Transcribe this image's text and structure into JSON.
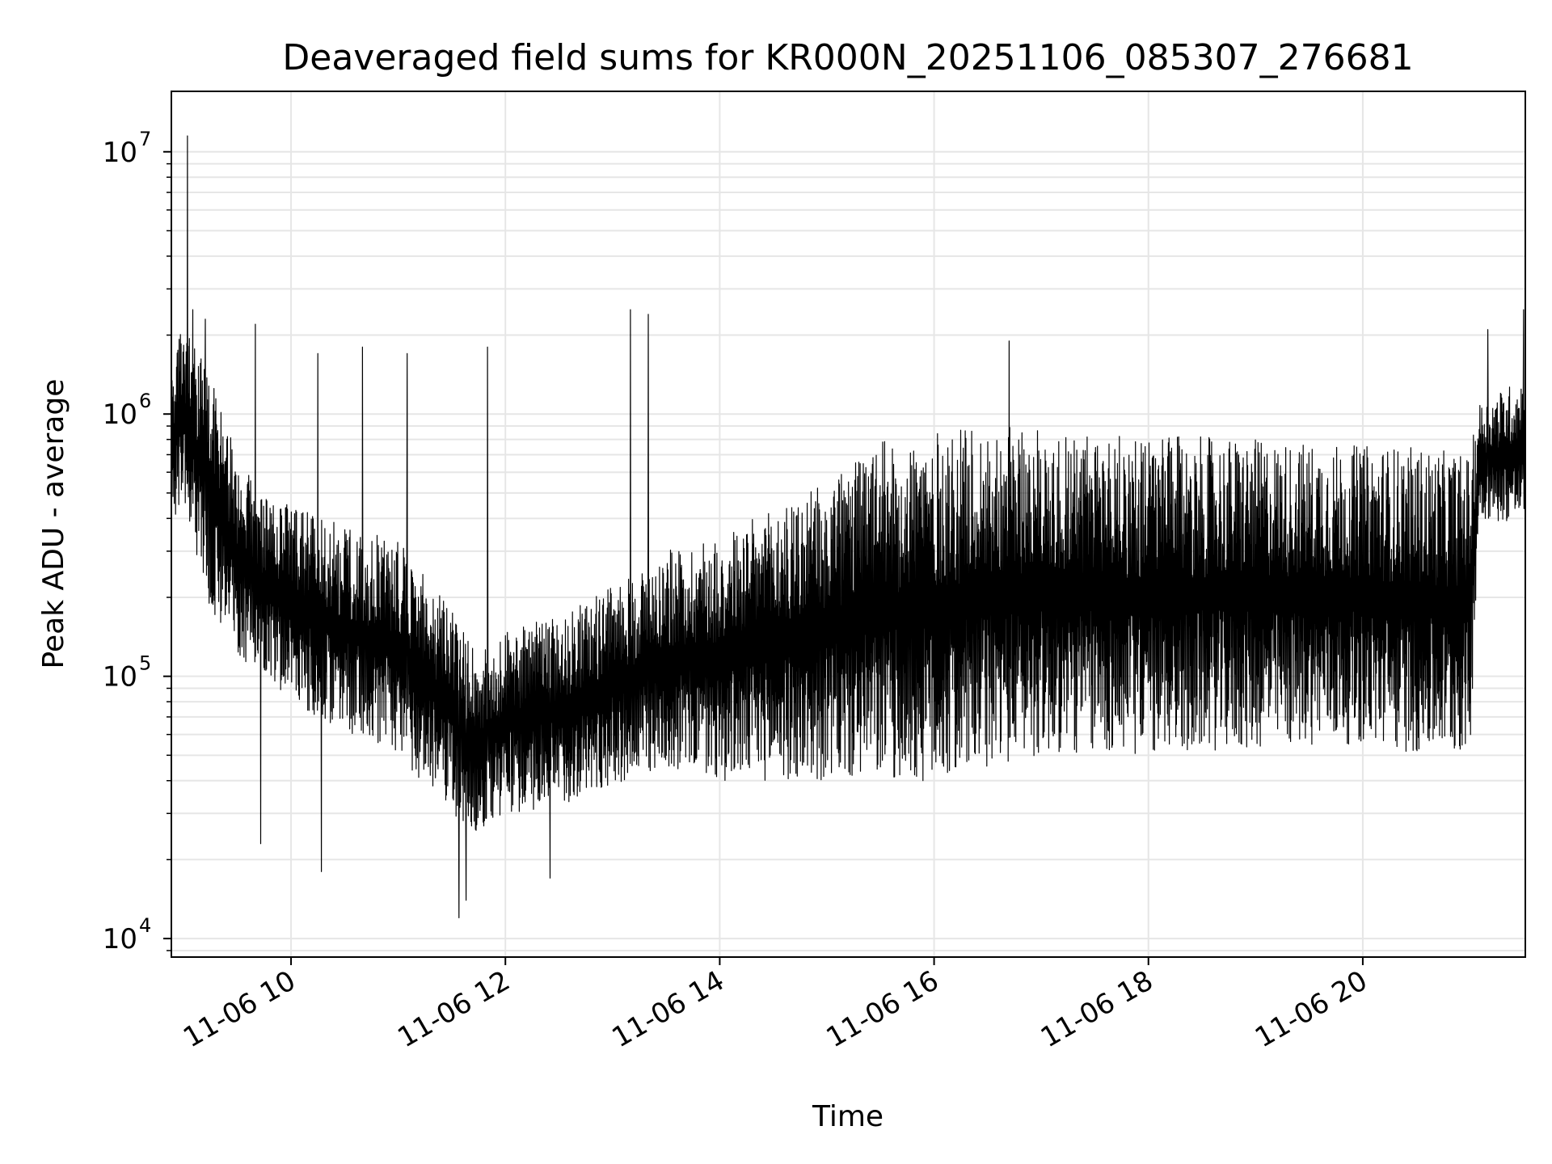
{
  "chart_data": {
    "type": "line",
    "title": "Deaveraged field sums for KR000N_20251106_085307_276681",
    "xlabel": "Time",
    "ylabel": "Peak ADU - average",
    "y_scale": "log",
    "ylim": [
      8500,
      17000000
    ],
    "xlim": [
      "11-06 08:53",
      "11-06 21:31"
    ],
    "grid": true,
    "line_color": "#000000",
    "grid_color": "#e6e6e6",
    "x_ticks": [
      {
        "value": "11-06 10:00",
        "label": "11-06 10"
      },
      {
        "value": "11-06 12:00",
        "label": "11-06 12"
      },
      {
        "value": "11-06 14:00",
        "label": "11-06 14"
      },
      {
        "value": "11-06 16:00",
        "label": "11-06 16"
      },
      {
        "value": "11-06 18:00",
        "label": "11-06 18"
      },
      {
        "value": "11-06 20:00",
        "label": "11-06 20"
      }
    ],
    "y_ticks": [
      {
        "value": 10000,
        "base": "10",
        "exp": "4"
      },
      {
        "value": 100000,
        "base": "10",
        "exp": "5"
      },
      {
        "value": 1000000,
        "base": "10",
        "exp": "6"
      },
      {
        "value": 10000000,
        "base": "10",
        "exp": "7"
      }
    ],
    "series": [
      {
        "envelope": [
          {
            "t": "11-06 08:53",
            "low": 380000,
            "high": 1700000
          },
          {
            "t": "11-06 09:00",
            "low": 450000,
            "high": 2200000
          },
          {
            "t": "11-06 09:15",
            "low": 180000,
            "high": 1400000
          },
          {
            "t": "11-06 09:30",
            "low": 120000,
            "high": 700000
          },
          {
            "t": "11-06 09:45",
            "low": 100000,
            "high": 500000
          },
          {
            "t": "11-06 10:00",
            "low": 80000,
            "high": 450000
          },
          {
            "t": "11-06 10:30",
            "low": 60000,
            "high": 380000
          },
          {
            "t": "11-06 11:00",
            "low": 50000,
            "high": 330000
          },
          {
            "t": "11-06 11:30",
            "low": 30000,
            "high": 180000
          },
          {
            "t": "11-06 11:45",
            "low": 25000,
            "high": 120000
          },
          {
            "t": "11-06 12:00",
            "low": 30000,
            "high": 150000
          },
          {
            "t": "11-06 12:30",
            "low": 32000,
            "high": 170000
          },
          {
            "t": "11-06 13:00",
            "low": 38000,
            "high": 220000
          },
          {
            "t": "11-06 13:30",
            "low": 45000,
            "high": 300000
          },
          {
            "t": "11-06 14:00",
            "low": 40000,
            "high": 350000
          },
          {
            "t": "11-06 14:30",
            "low": 40000,
            "high": 430000
          },
          {
            "t": "11-06 15:00",
            "low": 40000,
            "high": 550000
          },
          {
            "t": "11-06 15:30",
            "low": 40000,
            "high": 780000
          },
          {
            "t": "11-06 16:00",
            "low": 38000,
            "high": 850000
          },
          {
            "t": "11-06 16:30",
            "low": 45000,
            "high": 900000
          },
          {
            "t": "11-06 17:00",
            "low": 50000,
            "high": 880000
          },
          {
            "t": "11-06 17:30",
            "low": 50000,
            "high": 850000
          },
          {
            "t": "11-06 18:00",
            "low": 50000,
            "high": 820000
          },
          {
            "t": "11-06 18:30",
            "low": 52000,
            "high": 820000
          },
          {
            "t": "11-06 19:00",
            "low": 52000,
            "high": 800000
          },
          {
            "t": "11-06 19:30",
            "low": 55000,
            "high": 780000
          },
          {
            "t": "11-06 20:00",
            "low": 55000,
            "high": 760000
          },
          {
            "t": "11-06 20:30",
            "low": 50000,
            "high": 750000
          },
          {
            "t": "11-06 21:00",
            "low": 50000,
            "high": 700000
          },
          {
            "t": "11-06 21:05",
            "low": 400000,
            "high": 1100000
          },
          {
            "t": "11-06 21:31",
            "low": 380000,
            "high": 1400000
          }
        ],
        "spikes": [
          {
            "t": "11-06 09:02",
            "value": 11500000
          },
          {
            "t": "11-06 09:05",
            "value": 2500000
          },
          {
            "t": "11-06 09:12",
            "value": 2300000
          },
          {
            "t": "11-06 09:40",
            "value": 2200000
          },
          {
            "t": "11-06 10:15",
            "value": 1700000
          },
          {
            "t": "11-06 10:40",
            "value": 1800000
          },
          {
            "t": "11-06 11:05",
            "value": 1700000
          },
          {
            "t": "11-06 11:50",
            "value": 1800000
          },
          {
            "t": "11-06 13:10",
            "value": 2500000
          },
          {
            "t": "11-06 13:20",
            "value": 2400000
          },
          {
            "t": "11-06 16:42",
            "value": 1900000
          },
          {
            "t": "11-06 21:10",
            "value": 2100000
          },
          {
            "t": "11-06 21:30",
            "value": 2500000
          }
        ],
        "dips": [
          {
            "t": "11-06 09:43",
            "value": 23000
          },
          {
            "t": "11-06 10:17",
            "value": 18000
          },
          {
            "t": "11-06 11:34",
            "value": 12000
          },
          {
            "t": "11-06 11:38",
            "value": 14000
          },
          {
            "t": "11-06 12:25",
            "value": 17000
          }
        ]
      }
    ]
  }
}
